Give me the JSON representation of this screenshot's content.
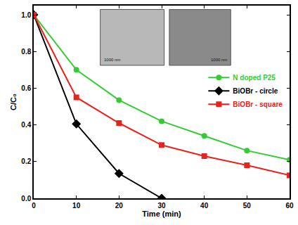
{
  "chart_data": {
    "type": "line",
    "x_label": "Time (min)",
    "y_label": "C/C₀",
    "x": [
      0,
      10,
      20,
      30,
      40,
      50,
      60
    ],
    "series": [
      {
        "name": "N doped P25",
        "color": "#33cc33",
        "marker": "circle",
        "values": [
          1.0,
          0.7,
          0.535,
          0.42,
          0.34,
          0.26,
          0.21
        ]
      },
      {
        "name": "BiOBr - circle",
        "color": "#000000",
        "marker": "diamond",
        "values": [
          1.0,
          0.405,
          0.135,
          0.0,
          null,
          null,
          null
        ]
      },
      {
        "name": "BiOBr - square",
        "color": "#e8231e",
        "marker": "square",
        "values": [
          1.0,
          0.55,
          0.41,
          0.29,
          0.23,
          0.18,
          0.125
        ]
      }
    ],
    "xlim": [
      0,
      60
    ],
    "xticks": [
      0,
      10,
      20,
      30,
      40,
      50,
      60
    ],
    "ylim": [
      0,
      1.05
    ],
    "yticks": [
      {
        "value": 0,
        "label": "0.0"
      },
      {
        "value": 0.2,
        "label": "0.2"
      },
      {
        "value": 0.4,
        "label": "0.4"
      },
      {
        "value": 0.6,
        "label": "0.6"
      },
      {
        "value": 0.8,
        "label": "0.8"
      },
      {
        "value": 1.0,
        "label": "1.0"
      }
    ],
    "grid": false,
    "legend": "upper right",
    "annotations": [
      "1000 nm",
      "1000 nm"
    ]
  }
}
